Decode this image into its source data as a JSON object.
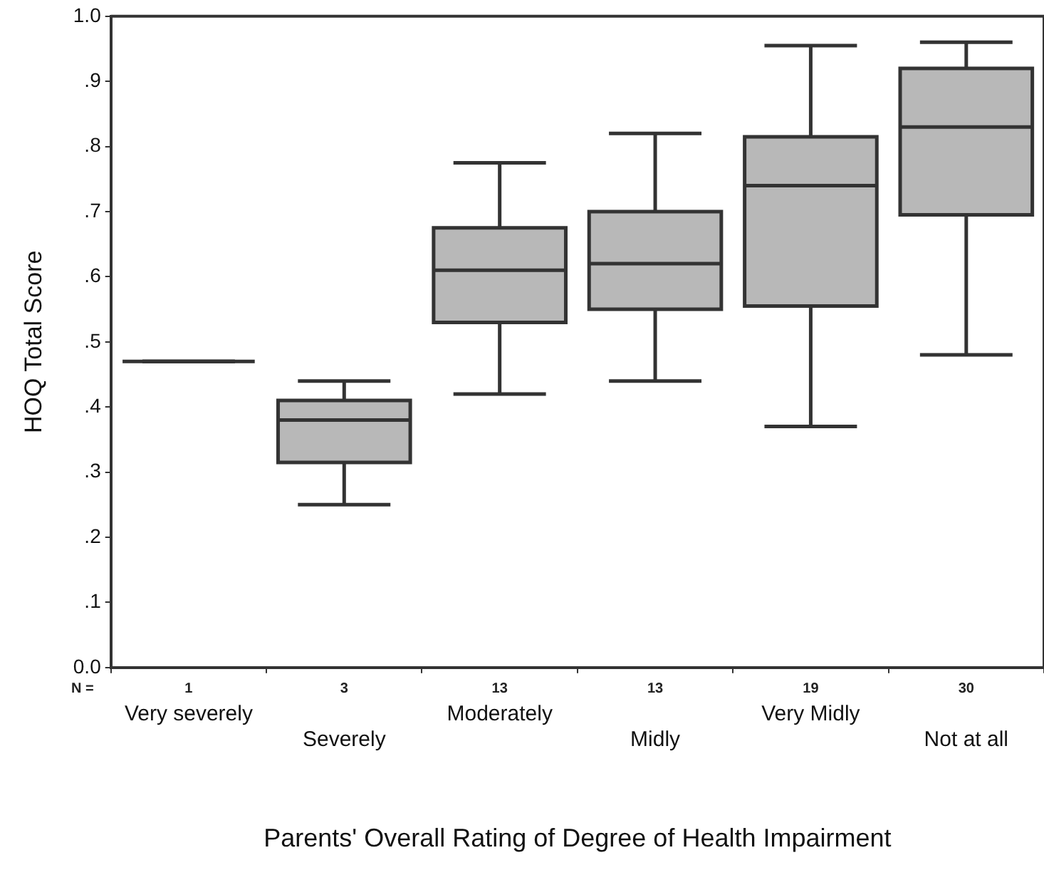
{
  "chart_data": {
    "type": "box",
    "xlabel": "Parents' Overall Rating of Degree of Health Impairment",
    "ylabel": "HOQ Total Score",
    "categories": [
      "Very severely",
      "Severely",
      "Moderately",
      "Midly",
      "Very Midly",
      "Not at all"
    ],
    "boxes": [
      {
        "low": 0.47,
        "q1": 0.47,
        "median": 0.47,
        "q3": 0.47,
        "high": 0.47
      },
      {
        "low": 0.25,
        "q1": 0.315,
        "median": 0.38,
        "q3": 0.41,
        "high": 0.44
      },
      {
        "low": 0.42,
        "q1": 0.53,
        "median": 0.61,
        "q3": 0.675,
        "high": 0.775
      },
      {
        "low": 0.44,
        "q1": 0.55,
        "median": 0.62,
        "q3": 0.7,
        "high": 0.82
      },
      {
        "low": 0.37,
        "q1": 0.555,
        "median": 0.74,
        "q3": 0.815,
        "high": 0.955
      },
      {
        "low": 0.48,
        "q1": 0.695,
        "median": 0.83,
        "q3": 0.92,
        "high": 0.96
      }
    ],
    "colors": [
      "#333333",
      "#b8b8b8",
      "#b8b8b8",
      "#b8b8b8",
      "#b8b8b8",
      "#b8b8b8"
    ],
    "ylim": [
      0,
      1
    ],
    "yticks": [
      {
        "value": 0,
        "label": "0.0"
      },
      {
        "value": 0.1,
        "label": ".1"
      },
      {
        "value": 0.2,
        "label": ".2"
      },
      {
        "value": 0.3,
        "label": ".3"
      },
      {
        "value": 0.4,
        "label": ".4"
      },
      {
        "value": 0.5,
        "label": ".5"
      },
      {
        "value": 0.6,
        "label": ".6"
      },
      {
        "value": 0.7,
        "label": ".7"
      },
      {
        "value": 0.8,
        "label": ".8"
      },
      {
        "value": 0.9,
        "label": ".9"
      },
      {
        "value": 1,
        "label": "1.0"
      }
    ],
    "grid": false,
    "legend": false,
    "annotations": [
      "N =",
      "1",
      "3",
      "13",
      "13",
      "19",
      "30"
    ]
  }
}
